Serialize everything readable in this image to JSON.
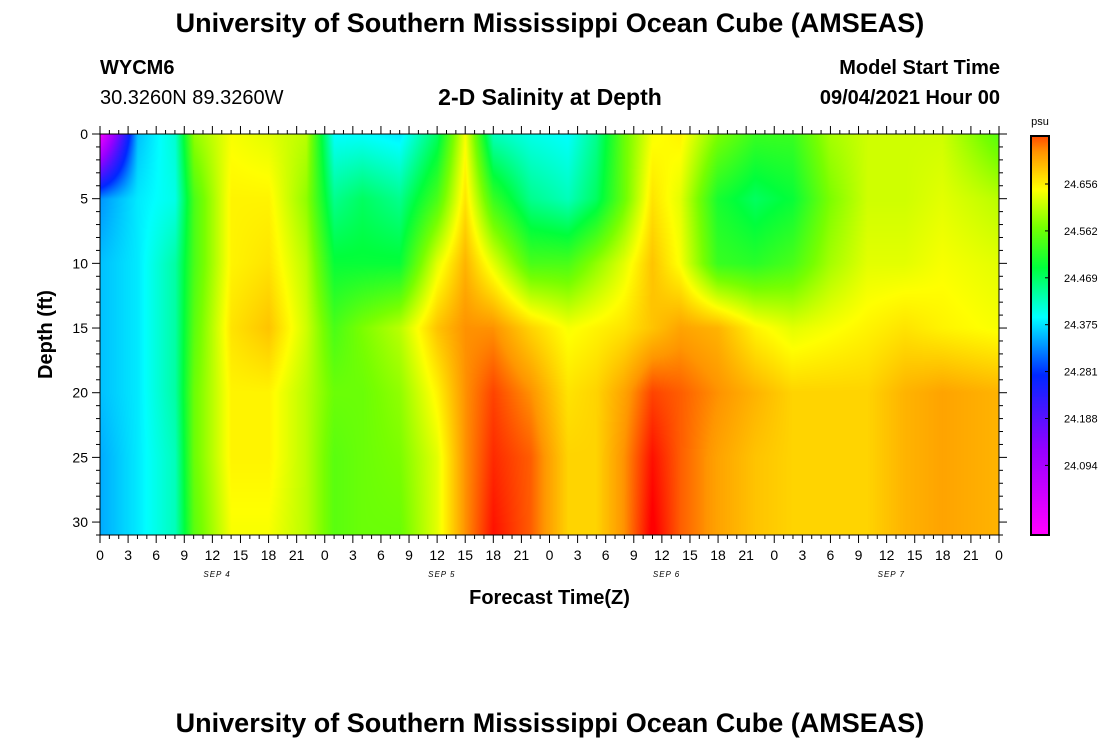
{
  "header": {
    "title": "University of Southern Mississippi Ocean Cube (AMSEAS)",
    "station_id": "WYCM6",
    "station_coords": "30.3260N  89.3260W",
    "plot_title": "2-D Salinity at Depth",
    "start_label": "Model Start Time",
    "start_value": "09/04/2021 Hour 00"
  },
  "footer": {
    "title": "University of Southern Mississippi Ocean Cube (AMSEAS)"
  },
  "chart_data": {
    "type": "heatmap",
    "title": "2-D Salinity at Depth",
    "xlabel": "Forecast Time(Z)",
    "ylabel": "Depth (ft)",
    "colorbar_unit": "psu",
    "colorbar_labels": [
      "24.656",
      "24.562",
      "24.469",
      "24.375",
      "24.281",
      "24.188",
      "24.094"
    ],
    "colorbar_values": [
      24.656,
      24.562,
      24.469,
      24.375,
      24.281,
      24.188,
      24.094
    ],
    "x_tick_labels": [
      "0",
      "3",
      "6",
      "9",
      "12",
      "15",
      "18",
      "21",
      "0",
      "3",
      "6",
      "9",
      "12",
      "15",
      "18",
      "21",
      "0",
      "3",
      "6",
      "9",
      "12",
      "15",
      "18",
      "21",
      "0",
      "3",
      "6",
      "9",
      "12",
      "15",
      "18",
      "21",
      "0"
    ],
    "date_labels": [
      "SEP 4",
      "SEP 5",
      "SEP 6",
      "SEP 7"
    ],
    "y_ticks": [
      0,
      5,
      10,
      15,
      20,
      25,
      30
    ],
    "y_tick_labels": [
      "0",
      "5",
      "10",
      "15",
      "20",
      "25",
      "30"
    ],
    "ylim": [
      0,
      31
    ],
    "xlim_hours": [
      0,
      96
    ],
    "depths_ft": [
      0,
      5,
      10,
      15,
      20,
      25,
      31
    ],
    "times_hours": [
      0,
      4,
      8,
      10,
      14,
      18,
      22,
      25,
      28,
      32,
      36,
      39,
      42,
      46,
      50,
      53,
      56,
      59,
      62,
      66,
      70,
      74,
      78,
      82,
      86,
      90,
      96
    ],
    "values": [
      [
        24.07,
        24.4,
        24.45,
        24.6,
        24.65,
        24.64,
        24.62,
        24.43,
        24.43,
        24.42,
        24.5,
        24.65,
        24.46,
        24.44,
        24.43,
        24.48,
        24.58,
        24.65,
        24.66,
        24.59,
        24.55,
        24.55,
        24.61,
        24.63,
        24.63,
        24.63,
        24.57
      ],
      [
        24.38,
        24.42,
        24.44,
        24.56,
        24.66,
        24.66,
        24.6,
        24.48,
        24.5,
        24.48,
        24.56,
        24.67,
        24.55,
        24.48,
        24.46,
        24.5,
        24.58,
        24.67,
        24.64,
        24.53,
        24.5,
        24.52,
        24.59,
        24.63,
        24.63,
        24.64,
        24.62
      ],
      [
        24.4,
        24.42,
        24.47,
        24.56,
        24.66,
        24.67,
        24.62,
        24.52,
        24.52,
        24.52,
        24.64,
        24.7,
        24.64,
        24.56,
        24.56,
        24.6,
        24.64,
        24.69,
        24.65,
        24.55,
        24.54,
        24.56,
        24.61,
        24.64,
        24.64,
        24.65,
        24.64
      ],
      [
        24.4,
        24.42,
        24.47,
        24.57,
        24.67,
        24.69,
        24.63,
        24.56,
        24.59,
        24.62,
        24.69,
        24.72,
        24.72,
        24.68,
        24.65,
        24.66,
        24.67,
        24.69,
        24.71,
        24.7,
        24.66,
        24.64,
        24.65,
        24.66,
        24.67,
        24.66,
        24.65
      ],
      [
        24.4,
        24.42,
        24.47,
        24.58,
        24.66,
        24.66,
        24.62,
        24.58,
        24.58,
        24.6,
        24.66,
        24.72,
        24.75,
        24.72,
        24.67,
        24.68,
        24.71,
        24.75,
        24.74,
        24.72,
        24.7,
        24.68,
        24.68,
        24.68,
        24.7,
        24.71,
        24.7
      ],
      [
        24.39,
        24.42,
        24.46,
        24.58,
        24.66,
        24.66,
        24.62,
        24.57,
        24.58,
        24.59,
        24.64,
        24.72,
        24.76,
        24.74,
        24.68,
        24.68,
        24.72,
        24.77,
        24.74,
        24.71,
        24.69,
        24.68,
        24.68,
        24.68,
        24.7,
        24.71,
        24.7
      ],
      [
        24.39,
        24.42,
        24.46,
        24.57,
        24.65,
        24.65,
        24.62,
        24.57,
        24.58,
        24.58,
        24.64,
        24.72,
        24.77,
        24.74,
        24.68,
        24.68,
        24.72,
        24.78,
        24.74,
        24.71,
        24.69,
        24.68,
        24.68,
        24.68,
        24.7,
        24.71,
        24.7
      ]
    ]
  }
}
